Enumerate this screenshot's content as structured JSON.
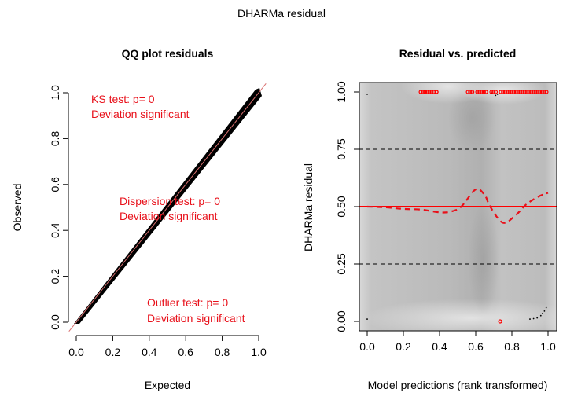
{
  "figure": {
    "title": "DHARMa residual"
  },
  "chart_data": [
    {
      "type": "scatter",
      "title": "QQ plot residuals",
      "xlabel": "Expected",
      "ylabel": "Observed",
      "xlim": [
        0,
        1
      ],
      "ylim": [
        0,
        1
      ],
      "xticks": [
        "0.0",
        "0.2",
        "0.4",
        "0.6",
        "0.8",
        "1.0"
      ],
      "yticks": [
        "0.0",
        "0.2",
        "0.4",
        "0.6",
        "0.8",
        "1.0"
      ],
      "reference_line": {
        "slope": 1,
        "intercept": 0,
        "color": "#e08080"
      },
      "points_description": "dense band of points along the 1:1 line from (0,0) to (1,1)",
      "band": {
        "x": [
          0.0,
          1.0
        ],
        "y": [
          0.0,
          1.0
        ],
        "color": "#000000"
      },
      "annotations": [
        {
          "line1": "KS test: p= 0",
          "line2": "Deviation  significant",
          "color": "#e8101a"
        },
        {
          "line1": "Dispersion test: p= 0",
          "line2": "Deviation  significant",
          "color": "#e8101a"
        },
        {
          "line1": "Outlier test: p= 0",
          "line2": "Deviation  significant",
          "color": "#e8101a"
        }
      ]
    },
    {
      "type": "scatter",
      "title": "Residual vs. predicted",
      "xlabel": "Model predictions (rank transformed)",
      "ylabel": "DHARMa residual",
      "xlim": [
        0,
        1
      ],
      "ylim": [
        0,
        1
      ],
      "xticks": [
        "0.0",
        "0.2",
        "0.4",
        "0.6",
        "0.8",
        "1.0"
      ],
      "yticks": [
        "0.00",
        "0.25",
        "0.50",
        "0.75",
        "1.00"
      ],
      "background": "grey density shading",
      "hlines": [
        {
          "y": 0.25,
          "style": "dashed",
          "color": "#000000"
        },
        {
          "y": 0.5,
          "style": "solid",
          "color": "#ff0000"
        },
        {
          "y": 0.75,
          "style": "dashed",
          "color": "#000000"
        }
      ],
      "quantile_curve": {
        "style": "dashed",
        "color": "#e8101a",
        "x": [
          0.0,
          0.1,
          0.2,
          0.3,
          0.4,
          0.46,
          0.52,
          0.6,
          0.65,
          0.68,
          0.75,
          0.82,
          0.88,
          0.95,
          1.0
        ],
        "y": [
          0.5,
          0.497,
          0.49,
          0.487,
          0.475,
          0.478,
          0.5,
          0.575,
          0.55,
          0.5,
          0.43,
          0.462,
          0.51,
          0.545,
          0.56
        ]
      },
      "outliers_top": {
        "y": 1.0,
        "color": "#ff0000",
        "x_ranges": [
          [
            0.296,
            0.374
          ],
          [
            0.383,
            0.383
          ],
          [
            0.557,
            0.591
          ],
          [
            0.609,
            0.665
          ],
          [
            0.687,
            0.717
          ],
          [
            0.739,
            1.0
          ]
        ]
      },
      "outliers_bottom": {
        "y": 0.0,
        "color": "#ff0000",
        "x": [
          0.735
        ]
      },
      "black_points": [
        {
          "x": 0.0,
          "y": 0.99
        },
        {
          "x": 0.0,
          "y": 0.01
        },
        {
          "x": 0.69,
          "y": 0.995
        },
        {
          "x": 0.71,
          "y": 0.985
        },
        {
          "x": 0.72,
          "y": 0.99
        },
        {
          "x": 0.9,
          "y": 0.01
        },
        {
          "x": 0.92,
          "y": 0.012
        },
        {
          "x": 0.94,
          "y": 0.015
        },
        {
          "x": 0.96,
          "y": 0.025
        },
        {
          "x": 0.97,
          "y": 0.035
        },
        {
          "x": 0.98,
          "y": 0.045
        },
        {
          "x": 0.99,
          "y": 0.06
        }
      ]
    }
  ]
}
